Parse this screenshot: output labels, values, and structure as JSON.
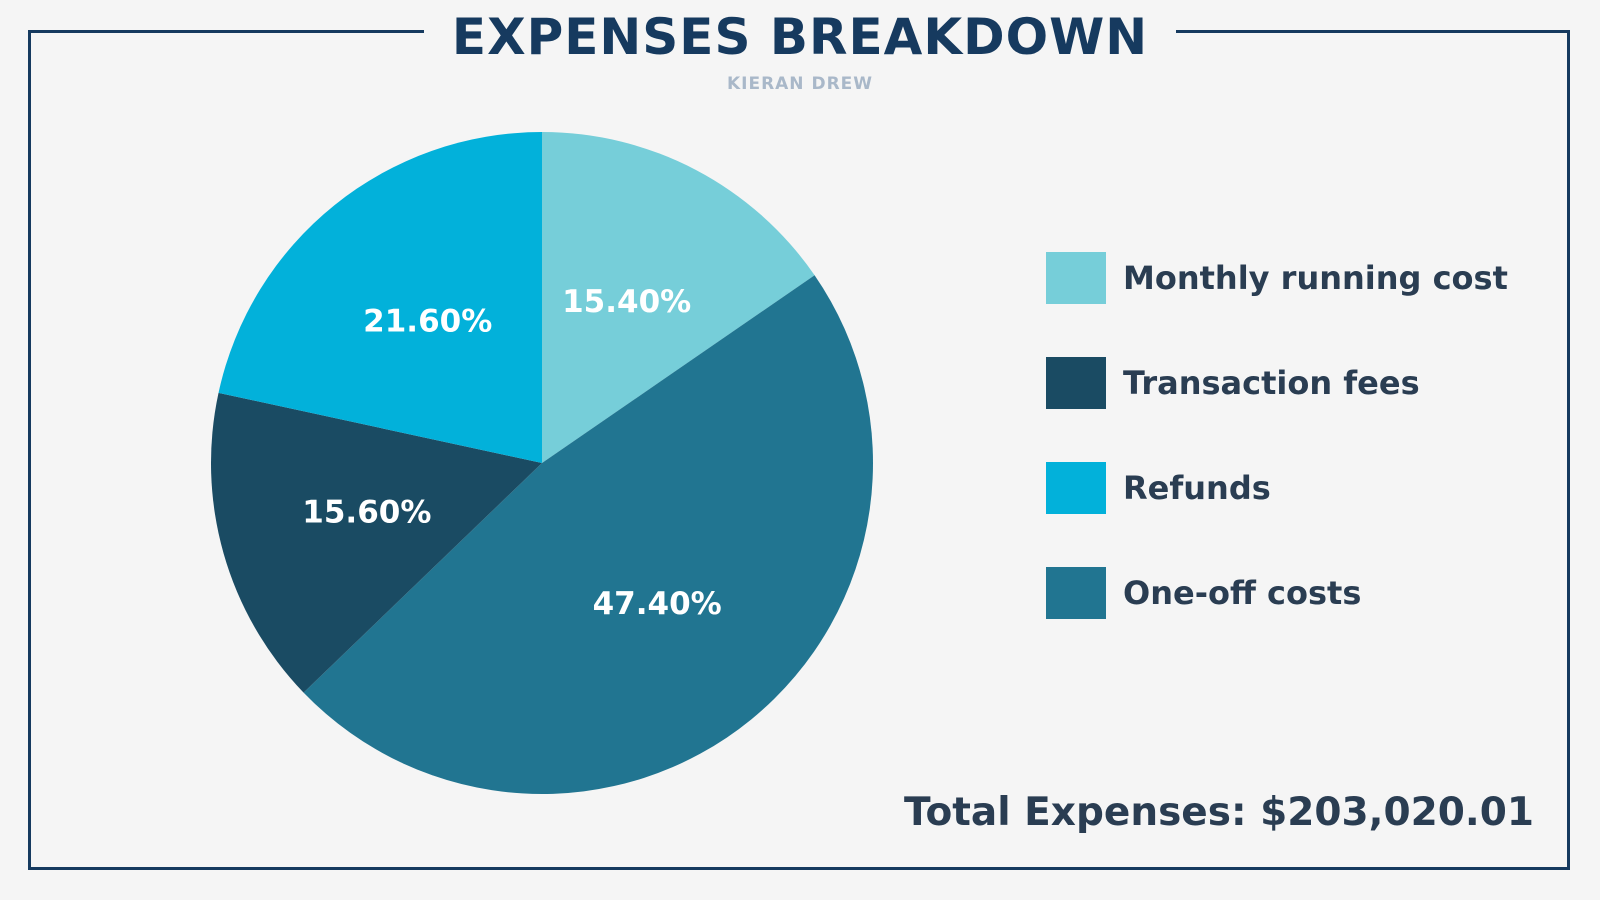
{
  "header": {
    "title": "EXPENSES BREAKDOWN",
    "subtitle": "KIERAN DREW"
  },
  "chart_data": {
    "type": "pie",
    "title": "EXPENSES BREAKDOWN",
    "subtitle": "KIERAN DREW",
    "legend_position": "right",
    "slices": [
      {
        "name": "Monthly running cost",
        "value": 15.4,
        "label": "15.40%",
        "color": "#76ced9"
      },
      {
        "name": "One-off costs",
        "value": 47.4,
        "label": "47.40%",
        "color": "#217591"
      },
      {
        "name": "Transaction fees",
        "value": 15.6,
        "label": "15.60%",
        "color": "#1a4b63"
      },
      {
        "name": "Refunds",
        "value": 21.6,
        "label": "21.60%",
        "color": "#02b1da"
      }
    ]
  },
  "legend": {
    "items": [
      {
        "label": "Monthly running cost",
        "color": "#76ced9"
      },
      {
        "label": "Transaction fees",
        "color": "#1a4b63"
      },
      {
        "label": "Refunds",
        "color": "#02b1da"
      },
      {
        "label": "One-off costs",
        "color": "#217591"
      }
    ]
  },
  "footer": {
    "total": "Total Expenses: $203,020.01"
  }
}
